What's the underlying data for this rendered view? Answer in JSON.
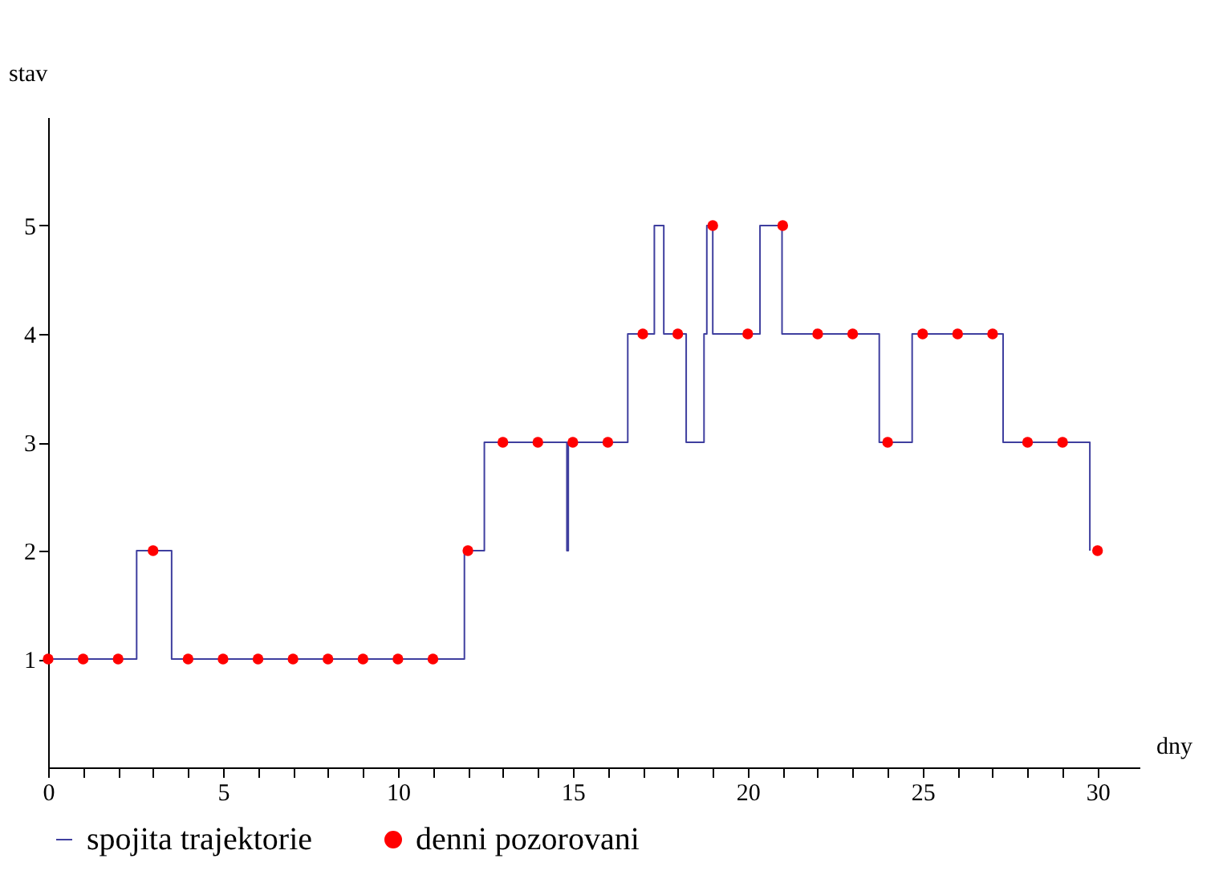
{
  "chart_data": {
    "type": "step",
    "xlabel": "dny",
    "ylabel": "stav",
    "xlim": [
      0,
      31.2
    ],
    "ylim": [
      0,
      6
    ],
    "xticks": [
      0,
      {
        "value": 1,
        "label": null
      },
      {
        "value": 2,
        "label": null
      },
      {
        "value": 3,
        "label": null
      },
      {
        "value": 4,
        "label": null
      },
      5,
      {
        "value": 6,
        "label": null
      },
      {
        "value": 7,
        "label": null
      },
      {
        "value": 8,
        "label": null
      },
      {
        "value": 9,
        "label": null
      },
      10,
      {
        "value": 11,
        "label": null
      },
      {
        "value": 12,
        "label": null
      },
      {
        "value": 13,
        "label": null
      },
      {
        "value": 14,
        "label": null
      },
      15,
      {
        "value": 16,
        "label": null
      },
      {
        "value": 17,
        "label": null
      },
      {
        "value": 18,
        "label": null
      },
      {
        "value": 19,
        "label": null
      },
      20,
      {
        "value": 21,
        "label": null
      },
      {
        "value": 22,
        "label": null
      },
      {
        "value": 23,
        "label": null
      },
      {
        "value": 24,
        "label": null
      },
      25,
      {
        "value": 26,
        "label": null
      },
      {
        "value": 27,
        "label": null
      },
      {
        "value": 28,
        "label": null
      },
      {
        "value": 29,
        "label": null
      },
      30
    ],
    "yticks": [
      1,
      2,
      3,
      4,
      5
    ],
    "legend": "bottom",
    "series": [
      {
        "name": "spojita trajektorie",
        "type": "step",
        "color": "#3f3f9f",
        "x": [
          0,
          2.53,
          3.53,
          11.9,
          12.47,
          14.83,
          14.87,
          16.57,
          17.33,
          17.6,
          18.24,
          18.75,
          18.83,
          19.0,
          20.35,
          20.98,
          23.76,
          24.7,
          27.3,
          29.78
        ],
        "values": [
          1,
          2,
          1,
          2,
          3,
          2,
          3,
          4,
          5,
          4,
          3,
          4,
          5,
          4,
          5,
          4,
          3,
          4,
          3,
          2
        ]
      },
      {
        "name": "denni pozorovani",
        "type": "scatter",
        "color": "#ff0000",
        "x": [
          0,
          1,
          2,
          3,
          4,
          5,
          6,
          7,
          8,
          9,
          10,
          11,
          12,
          13,
          14,
          15,
          16,
          17,
          18,
          19,
          20,
          21,
          22,
          23,
          24,
          25,
          26,
          27,
          28,
          29,
          30
        ],
        "values": [
          1,
          1,
          1,
          2,
          1,
          1,
          1,
          1,
          1,
          1,
          1,
          1,
          2,
          3,
          3,
          3,
          3,
          4,
          4,
          5,
          4,
          5,
          4,
          4,
          3,
          4,
          4,
          4,
          3,
          3,
          2
        ]
      }
    ]
  }
}
